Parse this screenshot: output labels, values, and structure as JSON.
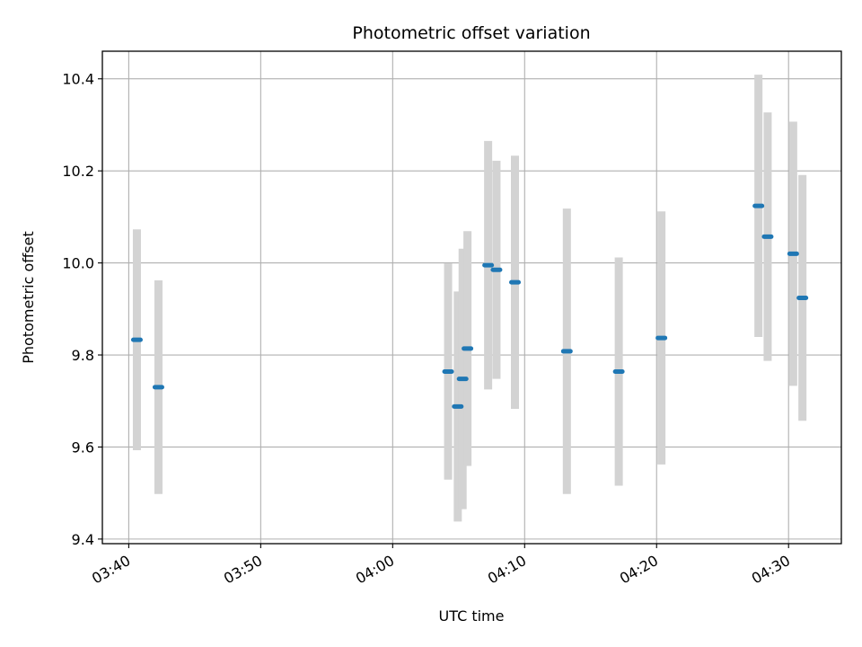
{
  "chart_data": {
    "type": "scatter",
    "title": "Photometric offset variation",
    "xlabel": "UTC time",
    "ylabel": "Photometric offset",
    "x_tick_labels": [
      "03:40",
      "03:50",
      "04:00",
      "04:10",
      "04:20",
      "04:30"
    ],
    "y_tick_labels": [
      "9.4",
      "9.6",
      "9.8",
      "10.0",
      "10.2",
      "10.4"
    ],
    "y_ticks": [
      9.4,
      9.6,
      9.8,
      10.0,
      10.2,
      10.4
    ],
    "x_ticks": [
      "03:40",
      "03:50",
      "04:00",
      "04:10",
      "04:20",
      "04:30"
    ],
    "xlim": [
      "03:38",
      "04:34"
    ],
    "ylim": [
      9.39,
      10.46
    ],
    "grid": true,
    "colors": {
      "point": "#1f77b4",
      "errorbar": "#d3d3d3",
      "grid": "#b0b0b0"
    },
    "series": [
      {
        "points": [
          {
            "x": "03:40:37",
            "y": 9.833,
            "err": 0.24
          },
          {
            "x": "03:42:15",
            "y": 9.73,
            "err": 0.232
          },
          {
            "x": "04:04:12",
            "y": 9.764,
            "err": 0.235
          },
          {
            "x": "04:04:56",
            "y": 9.688,
            "err": 0.25
          },
          {
            "x": "04:05:18",
            "y": 9.748,
            "err": 0.283
          },
          {
            "x": "04:05:40",
            "y": 9.814,
            "err": 0.255
          },
          {
            "x": "04:07:14",
            "y": 9.995,
            "err": 0.27
          },
          {
            "x": "04:07:52",
            "y": 9.985,
            "err": 0.237
          },
          {
            "x": "04:09:16",
            "y": 9.958,
            "err": 0.275
          },
          {
            "x": "04:13:12",
            "y": 9.808,
            "err": 0.31
          },
          {
            "x": "04:17:08",
            "y": 9.764,
            "err": 0.248
          },
          {
            "x": "04:20:22",
            "y": 9.837,
            "err": 0.275
          },
          {
            "x": "04:27:43",
            "y": 10.124,
            "err": 0.285
          },
          {
            "x": "04:28:25",
            "y": 10.057,
            "err": 0.27
          },
          {
            "x": "04:30:21",
            "y": 10.02,
            "err": 0.287
          },
          {
            "x": "04:31:03",
            "y": 9.924,
            "err": 0.267
          }
        ]
      }
    ]
  }
}
